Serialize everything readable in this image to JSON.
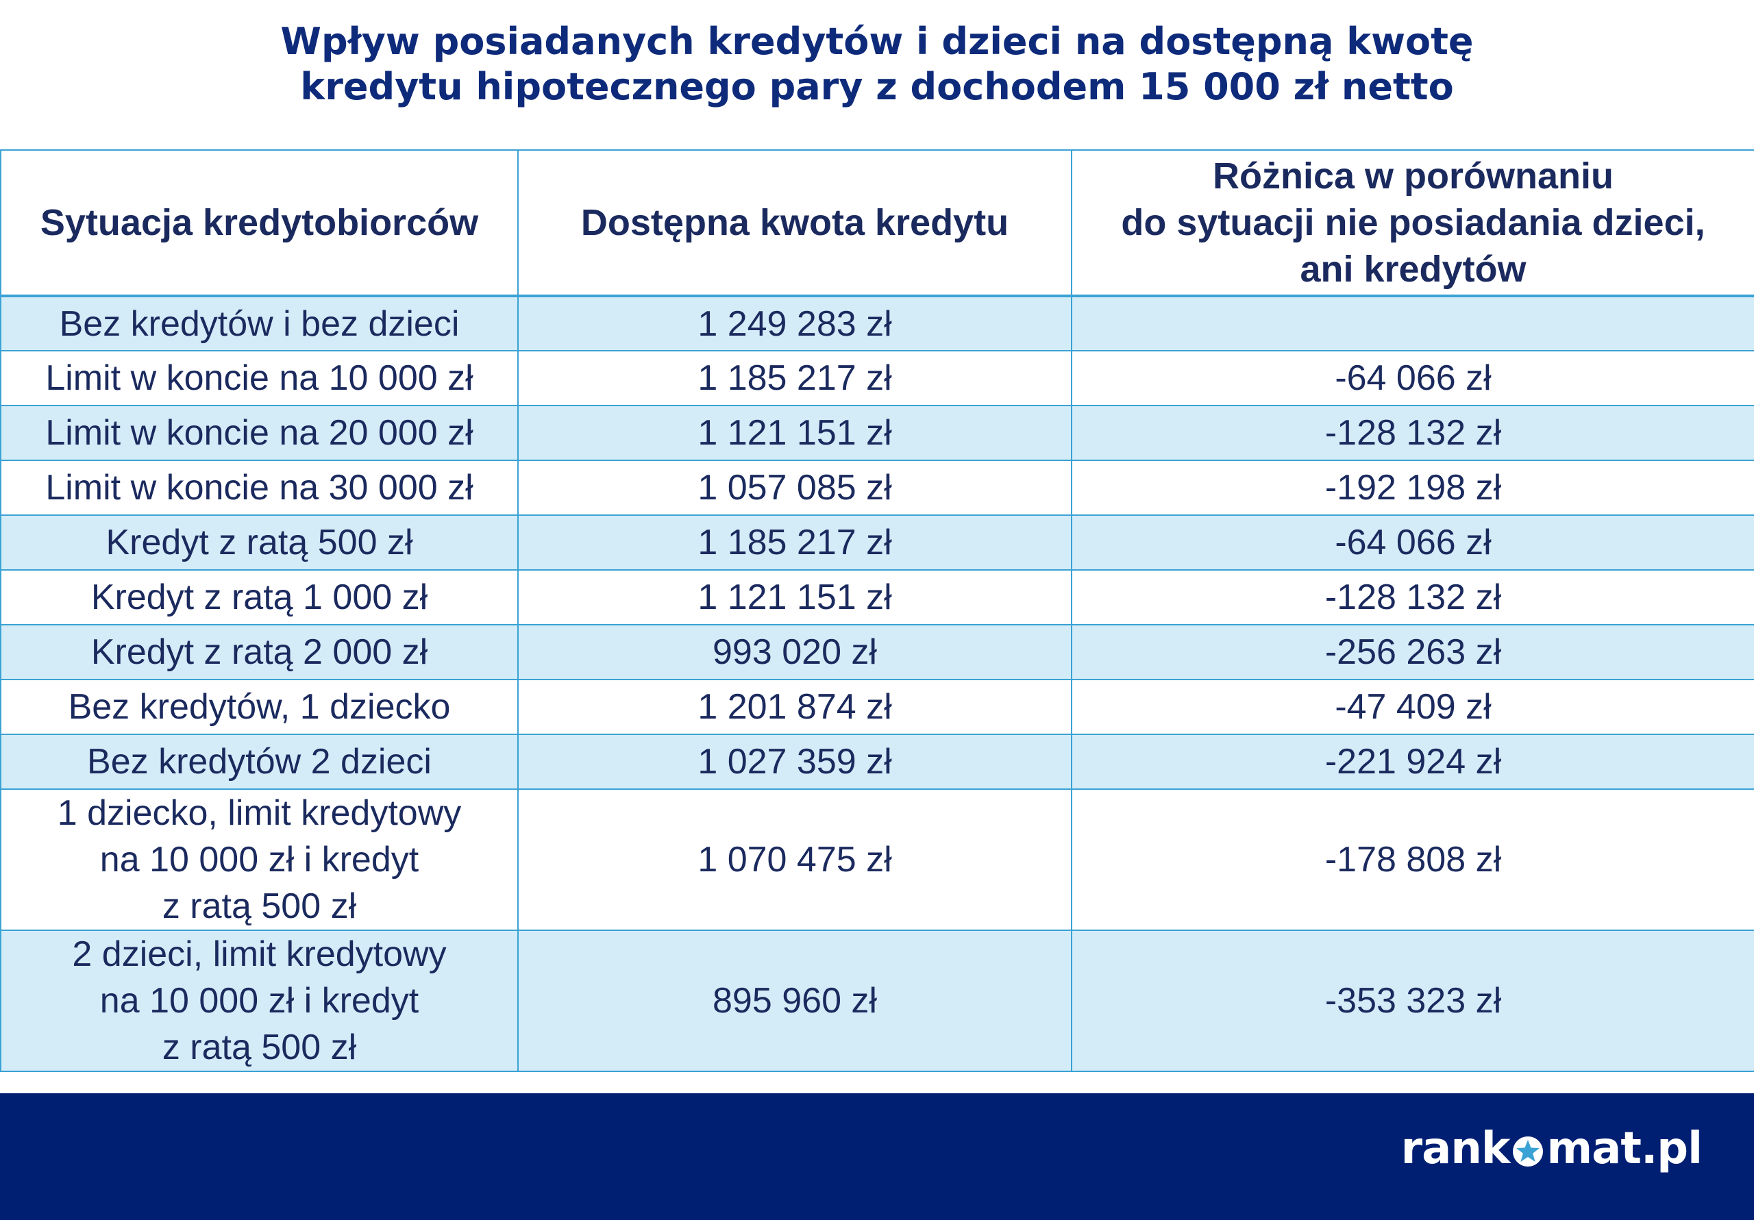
{
  "title": {
    "line1": "Wpływ posiadanych kredytów i dzieci na dostępną kwotę",
    "line2": "kredytu hipotecznego pary z dochodem 15 000 zł netto"
  },
  "chart_data": {
    "type": "table",
    "headers": {
      "col1": "Sytuacja kredytobiorców",
      "col2": "Dostępna kwota kredytu",
      "col3_lines": [
        "Różnica w porównaniu",
        "do sytuacji nie posiadania dzieci,",
        "ani kredytów"
      ]
    },
    "rows": [
      {
        "situation": [
          "Bez kredytów i bez dzieci"
        ],
        "amount": "1 249 283 zł",
        "diff": ""
      },
      {
        "situation": [
          "Limit w koncie na 10 000 zł"
        ],
        "amount": "1 185 217 zł",
        "diff": "-64 066 zł"
      },
      {
        "situation": [
          "Limit w koncie na 20 000 zł"
        ],
        "amount": "1 121 151 zł",
        "diff": "-128 132 zł"
      },
      {
        "situation": [
          "Limit w koncie na 30 000 zł"
        ],
        "amount": "1 057 085 zł",
        "diff": "-192 198 zł"
      },
      {
        "situation": [
          "Kredyt z ratą 500 zł"
        ],
        "amount": "1 185 217 zł",
        "diff": "-64 066 zł"
      },
      {
        "situation": [
          "Kredyt z ratą 1 000 zł"
        ],
        "amount": "1 121 151 zł",
        "diff": "-128 132 zł"
      },
      {
        "situation": [
          "Kredyt z ratą 2 000 zł"
        ],
        "amount": "993 020 zł",
        "diff": "-256 263 zł"
      },
      {
        "situation": [
          "Bez kredytów, 1 dziecko"
        ],
        "amount": "1 201 874 zł",
        "diff": "-47 409 zł"
      },
      {
        "situation": [
          "Bez kredytów 2 dzieci"
        ],
        "amount": "1 027 359 zł",
        "diff": "-221 924 zł"
      },
      {
        "situation": [
          "1 dziecko, limit kredytowy",
          "na 10 000 zł i kredyt",
          "z ratą 500 zł"
        ],
        "amount": "1 070 475 zł",
        "diff": "-178 808 zł"
      },
      {
        "situation": [
          "2 dzieci, limit kredytowy",
          "na 10 000 zł i kredyt",
          "z ratą 500 zł"
        ],
        "amount": "895 960 zł",
        "diff": "-353 323 zł"
      }
    ]
  },
  "footer": {
    "logo_left": "rank",
    "logo_right": "mat.pl",
    "logo_icon": "star-in-circle-icon",
    "background_color": "#001f73"
  },
  "colors": {
    "title": "#0e2a7a",
    "text": "#1b2a5e",
    "border": "#3aa2d4",
    "row_shade": "#d4ecf8"
  }
}
